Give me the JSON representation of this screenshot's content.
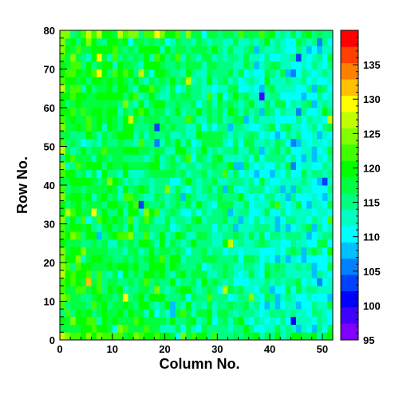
{
  "chart_data": {
    "type": "heatmap",
    "xlabel": "Column No.",
    "ylabel": "Row No.",
    "x_range": [
      0,
      52
    ],
    "y_range": [
      0,
      80
    ],
    "x_ticks": [
      "0",
      "10",
      "20",
      "30",
      "40",
      "50"
    ],
    "y_ticks": [
      "0",
      "10",
      "20",
      "30",
      "40",
      "50",
      "60",
      "70",
      "80"
    ],
    "z_range": [
      95,
      140
    ],
    "colorbar_labels": [
      "95",
      "100",
      "105",
      "110",
      "115",
      "120",
      "125",
      "130",
      "135"
    ],
    "colorbar_colors": [
      "#8000ff",
      "#4000ff",
      "#0000ff",
      "#0040ff",
      "#0080ff",
      "#00c0ff",
      "#00ffff",
      "#00ffc0",
      "#00ff80",
      "#00ff40",
      "#00ff00",
      "#40ff00",
      "#80ff00",
      "#c0ff00",
      "#ffff00",
      "#ffc000",
      "#ff8000",
      "#ff4000",
      "#ff0000"
    ],
    "grid": false,
    "legend": "colorbar-right",
    "trend": "values about 117-122 toward low column numbers and high row numbers, about 108-112 toward high column numbers and middle rows"
  }
}
